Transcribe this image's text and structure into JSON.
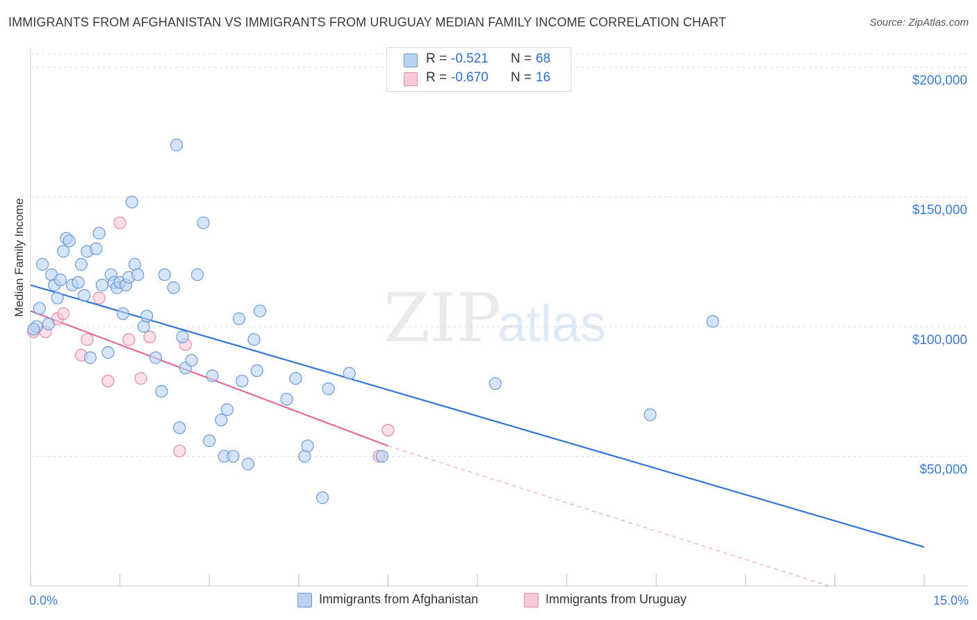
{
  "title": "IMMIGRANTS FROM AFGHANISTAN VS IMMIGRANTS FROM URUGUAY MEDIAN FAMILY INCOME CORRELATION CHART",
  "source": "Source: ZipAtlas.com",
  "watermark": {
    "zip": "ZIP",
    "atlas": "atlas"
  },
  "legend": {
    "rows": [
      {
        "r_label": "R =",
        "r_value": "-0.521",
        "n_label": "N =",
        "n_value": "68"
      },
      {
        "r_label": "R =",
        "r_value": "-0.670",
        "n_label": "N =",
        "n_value": "16"
      }
    ]
  },
  "bottom_legend": [
    "Immigrants from Afghanistan",
    "Immigrants from Uruguay"
  ],
  "colors": {
    "afghanistan_fill": "#b9d2f3",
    "afghanistan_stroke": "#6c9ad6",
    "afghanistan_line": "#2f75d3",
    "uruguay_fill": "#f7c9d8",
    "uruguay_stroke": "#e48aa9",
    "uruguay_line": "#e06a94",
    "grid": "#dddddd",
    "tick_label": "#3d7bd1"
  },
  "chart_data": {
    "type": "scatter",
    "xlabel": "",
    "ylabel": "Median Family Income",
    "xlim": [
      0,
      15
    ],
    "ylim": [
      0,
      205000
    ],
    "x_ticks": [
      0,
      1.5,
      3,
      4.5,
      6,
      7.5,
      9,
      10.5,
      12,
      13.5,
      15
    ],
    "x_tick_labels": [
      {
        "x": 0,
        "label": "0.0%"
      },
      {
        "x": 15,
        "label": "15.0%"
      }
    ],
    "y_ticks": [
      50000,
      100000,
      150000,
      200000
    ],
    "y_tick_labels": [
      "$50,000",
      "$100,000",
      "$150,000",
      "$200,000"
    ],
    "grid": "horizontal dashed",
    "legend_position": "top-center",
    "series": [
      {
        "name": "Immigrants from Afghanistan",
        "r": -0.521,
        "n": 68,
        "trend": {
          "x0": 0,
          "y0": 116000,
          "x1": 15,
          "y1": 15000
        },
        "points": [
          [
            0.1,
            100000
          ],
          [
            0.15,
            107000
          ],
          [
            0.2,
            124000
          ],
          [
            0.3,
            101000
          ],
          [
            0.35,
            120000
          ],
          [
            0.4,
            116000
          ],
          [
            0.45,
            111000
          ],
          [
            0.5,
            118000
          ],
          [
            0.55,
            129000
          ],
          [
            0.6,
            134000
          ],
          [
            0.65,
            133000
          ],
          [
            0.7,
            116000
          ],
          [
            0.8,
            117000
          ],
          [
            0.85,
            124000
          ],
          [
            0.9,
            112000
          ],
          [
            0.95,
            129000
          ],
          [
            1.0,
            88000
          ],
          [
            1.1,
            130000
          ],
          [
            1.15,
            136000
          ],
          [
            1.2,
            116000
          ],
          [
            1.3,
            90000
          ],
          [
            1.35,
            120000
          ],
          [
            1.4,
            117000
          ],
          [
            1.45,
            115000
          ],
          [
            1.5,
            117000
          ],
          [
            1.55,
            105000
          ],
          [
            1.6,
            116000
          ],
          [
            1.65,
            119000
          ],
          [
            1.7,
            148000
          ],
          [
            1.75,
            124000
          ],
          [
            1.8,
            120000
          ],
          [
            1.9,
            100000
          ],
          [
            1.95,
            104000
          ],
          [
            2.1,
            88000
          ],
          [
            2.2,
            75000
          ],
          [
            2.25,
            120000
          ],
          [
            2.4,
            115000
          ],
          [
            2.45,
            170000
          ],
          [
            2.5,
            61000
          ],
          [
            2.55,
            96000
          ],
          [
            2.6,
            84000
          ],
          [
            2.7,
            87000
          ],
          [
            2.8,
            120000
          ],
          [
            2.9,
            140000
          ],
          [
            3.0,
            56000
          ],
          [
            3.05,
            81000
          ],
          [
            3.2,
            64000
          ],
          [
            3.25,
            50000
          ],
          [
            3.3,
            68000
          ],
          [
            3.4,
            50000
          ],
          [
            3.5,
            103000
          ],
          [
            3.55,
            79000
          ],
          [
            3.65,
            47000
          ],
          [
            3.75,
            95000
          ],
          [
            3.8,
            83000
          ],
          [
            3.85,
            106000
          ],
          [
            4.3,
            72000
          ],
          [
            4.45,
            80000
          ],
          [
            4.6,
            50000
          ],
          [
            4.65,
            54000
          ],
          [
            4.9,
            34000
          ],
          [
            5.0,
            76000
          ],
          [
            5.35,
            82000
          ],
          [
            5.9,
            50000
          ],
          [
            7.8,
            78000
          ],
          [
            10.4,
            66000
          ],
          [
            11.45,
            102000
          ],
          [
            0.05,
            99000
          ]
        ]
      },
      {
        "name": "Immigrants from Uruguay",
        "r": -0.67,
        "n": 16,
        "trend": {
          "x0": 0,
          "y0": 106000,
          "x1": 6.0,
          "y1": 54000,
          "x_dash_end": 13.4,
          "y_dash_end": -8000
        },
        "points": [
          [
            0.05,
            98000
          ],
          [
            0.25,
            98000
          ],
          [
            0.45,
            103000
          ],
          [
            0.55,
            105000
          ],
          [
            0.85,
            89000
          ],
          [
            0.95,
            95000
          ],
          [
            1.15,
            111000
          ],
          [
            1.3,
            79000
          ],
          [
            1.5,
            140000
          ],
          [
            1.65,
            95000
          ],
          [
            1.85,
            80000
          ],
          [
            2.0,
            96000
          ],
          [
            2.5,
            52000
          ],
          [
            2.6,
            93000
          ],
          [
            5.85,
            50000
          ],
          [
            6.0,
            60000
          ]
        ]
      }
    ]
  }
}
